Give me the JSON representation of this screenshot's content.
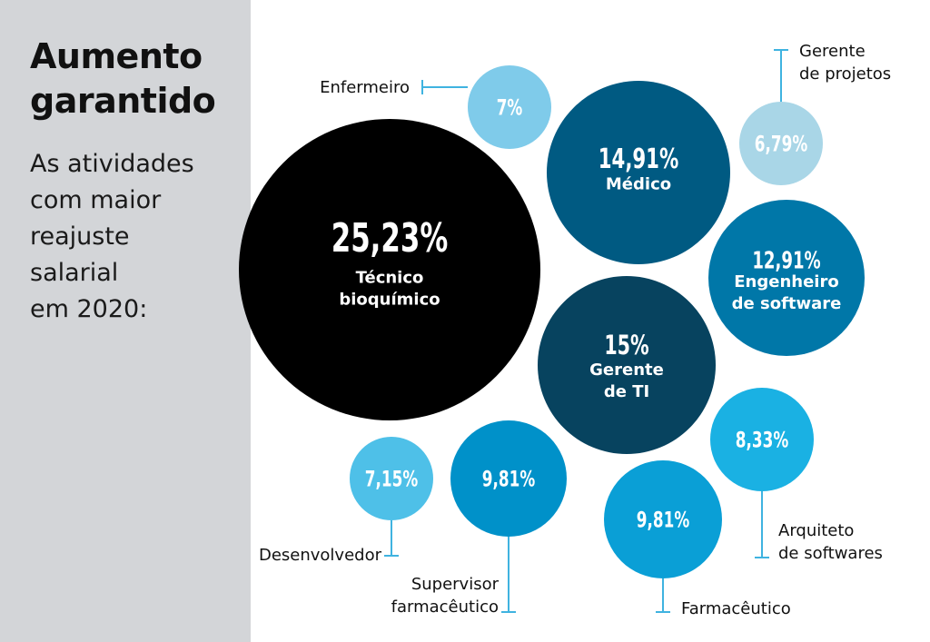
{
  "header": {
    "title_lines": [
      "Aumento",
      "garantido"
    ],
    "subtitle_lines": [
      "As atividades",
      "com maior",
      "reajuste",
      "salarial",
      "em 2020:"
    ]
  },
  "chart_data": {
    "type": "bubble",
    "unit": "%",
    "items": [
      {
        "id": "tecnico-bioquimico",
        "value": 25.23,
        "display": "25,23%",
        "label_lines": [
          "Técnico",
          "bioquímico"
        ],
        "label_pos": "inside",
        "color": "#000000"
      },
      {
        "id": "gerente-de-ti",
        "value": 15,
        "display": "15%",
        "label_lines": [
          "Gerente",
          "de TI"
        ],
        "label_pos": "inside",
        "color": "#07435f"
      },
      {
        "id": "medico",
        "value": 14.91,
        "display": "14,91%",
        "label_lines": [
          "Médico"
        ],
        "label_pos": "inside",
        "color": "#005a82"
      },
      {
        "id": "engenheiro-de-software",
        "value": 12.91,
        "display": "12,91%",
        "label_lines": [
          "Engenheiro",
          "de software"
        ],
        "label_pos": "inside",
        "color": "#0077a8"
      },
      {
        "id": "supervisor-farmaceutico",
        "value": 9.81,
        "display": "9,81%",
        "label_lines": [
          "Supervisor",
          "farmacêutico"
        ],
        "label_pos": "below-left",
        "color": "#0091c9"
      },
      {
        "id": "farmaceutico",
        "value": 9.81,
        "display": "9,81%",
        "label_lines": [
          "Farmacêutico"
        ],
        "label_pos": "below-right",
        "color": "#0a9fd6"
      },
      {
        "id": "arquiteto-de-softwares",
        "value": 8.33,
        "display": "8,33%",
        "label_lines": [
          "Arquiteto",
          "de softwares"
        ],
        "label_pos": "below-right",
        "color": "#1ab1e3"
      },
      {
        "id": "desenvolvedor",
        "value": 7.15,
        "display": "7,15%",
        "label_lines": [
          "Desenvolvedor"
        ],
        "label_pos": "below-left",
        "color": "#4ec0e8"
      },
      {
        "id": "enfermeiro",
        "value": 7,
        "display": "7%",
        "label_lines": [
          "Enfermeiro"
        ],
        "label_pos": "left",
        "color": "#7fcbea"
      },
      {
        "id": "gerente-de-projetos",
        "value": 6.79,
        "display": "6,79%",
        "label_lines": [
          "Gerente",
          "de projetos"
        ],
        "label_pos": "above-right",
        "color": "#a9d6e7"
      }
    ],
    "leader_color": "#3fb3e0"
  }
}
